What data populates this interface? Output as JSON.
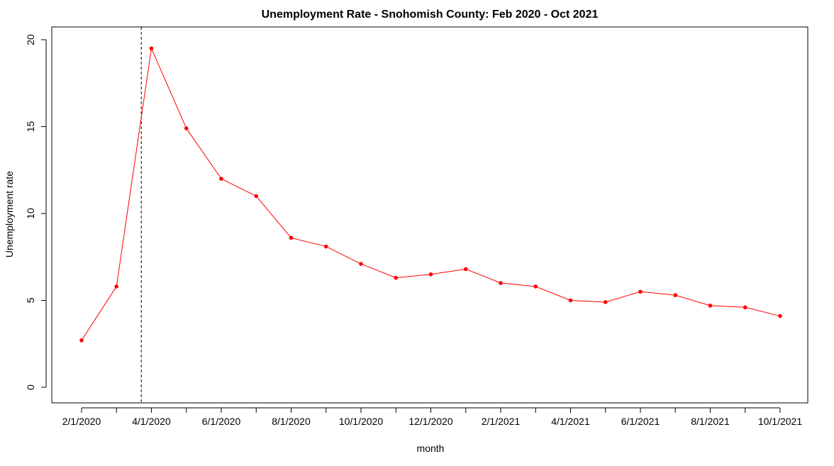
{
  "chart_data": {
    "type": "line",
    "title": "Unemployment Rate - Snohomish County: Feb 2020 - Oct 2021",
    "xlabel": "month",
    "ylabel": "Unemployment rate",
    "x": [
      "2/1/2020",
      "3/1/2020",
      "4/1/2020",
      "5/1/2020",
      "6/1/2020",
      "7/1/2020",
      "8/1/2020",
      "9/1/2020",
      "10/1/2020",
      "11/1/2020",
      "12/1/2020",
      "1/1/2021",
      "2/1/2021",
      "3/1/2021",
      "4/1/2021",
      "5/1/2021",
      "6/1/2021",
      "7/1/2021",
      "8/1/2021",
      "9/1/2021",
      "10/1/2021"
    ],
    "x_tick_labels": [
      "2/1/2020",
      "4/1/2020",
      "6/1/2020",
      "8/1/2020",
      "10/1/2020",
      "12/1/2020",
      "2/1/2021",
      "4/1/2021",
      "6/1/2021",
      "8/1/2021",
      "10/1/2021"
    ],
    "series": [
      {
        "values": [
          2.7,
          5.8,
          19.5,
          14.9,
          12.0,
          11.0,
          8.6,
          8.1,
          7.1,
          6.3,
          6.5,
          6.8,
          6.0,
          5.8,
          5.0,
          4.9,
          5.5,
          5.3,
          4.7,
          4.6,
          4.1
        ],
        "color": "#ff0000"
      }
    ],
    "reference_line": {
      "type": "vertical",
      "x": "3/23/2020",
      "style": "dashed",
      "color": "#000000"
    },
    "ylim": [
      0,
      20
    ],
    "y_ticks": [
      0,
      5,
      10,
      15,
      20
    ],
    "grid": false,
    "legend": "none"
  }
}
